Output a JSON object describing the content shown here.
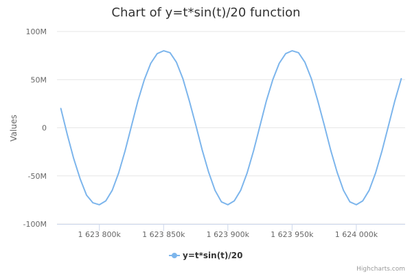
{
  "chart_data": {
    "type": "line",
    "title": "Chart of y=t*sin(t)/20 function",
    "xlabel": "",
    "ylabel": "Values",
    "xlim": [
      1623767,
      1624038
    ],
    "ylim": [
      -100000000,
      100000000
    ],
    "x_ticks": [
      {
        "value": 1623800,
        "label": "1 623 800k"
      },
      {
        "value": 1623850,
        "label": "1 623 850k"
      },
      {
        "value": 1623900,
        "label": "1 623 900k"
      },
      {
        "value": 1623950,
        "label": "1 623 950k"
      },
      {
        "value": 1624000,
        "label": "1 624 000k"
      }
    ],
    "y_ticks": [
      {
        "value": 100000000,
        "label": "100M"
      },
      {
        "value": 50000000,
        "label": "50M"
      },
      {
        "value": 0,
        "label": "0"
      },
      {
        "value": -50000000,
        "label": "-50M"
      },
      {
        "value": -100000000,
        "label": "-100M"
      }
    ],
    "grid": true,
    "legend_position": "bottom-center",
    "series": [
      {
        "name": "y=t*sin(t)/20",
        "color": "#7cb5ec",
        "x": [
          1623770,
          1623775,
          1623780,
          1623785,
          1623790,
          1623795,
          1623800,
          1623805,
          1623810,
          1623815,
          1623820,
          1623825,
          1623830,
          1623835,
          1623840,
          1623845,
          1623850,
          1623855,
          1623860,
          1623865,
          1623870,
          1623875,
          1623880,
          1623885,
          1623890,
          1623895,
          1623900,
          1623905,
          1623910,
          1623915,
          1623920,
          1623925,
          1623930,
          1623935,
          1623940,
          1623945,
          1623950,
          1623955,
          1623960,
          1623965,
          1623970,
          1623975,
          1623980,
          1623985,
          1623990,
          1623995,
          1624000,
          1624005,
          1624010,
          1624015,
          1624020,
          1624025,
          1624030,
          1624035
        ],
        "y": [
          20000000,
          -7000000,
          -32000000,
          -53000000,
          -70000000,
          -78000000,
          -80000000,
          -76000000,
          -65000000,
          -47000000,
          -24000000,
          2000000,
          28000000,
          50000000,
          67000000,
          77000000,
          80000000,
          78000000,
          68000000,
          51000000,
          28000000,
          3000000,
          -23000000,
          -46000000,
          -65000000,
          -77000000,
          -80000000,
          -76000000,
          -65000000,
          -47000000,
          -24000000,
          2000000,
          28000000,
          50000000,
          67000000,
          77000000,
          80000000,
          78000000,
          68000000,
          51000000,
          28000000,
          3000000,
          -23000000,
          -46000000,
          -65000000,
          -77000000,
          -80000000,
          -76000000,
          -65000000,
          -47000000,
          -24000000,
          2000000,
          28000000,
          51000000
        ]
      }
    ]
  },
  "credits": "Highcharts.com"
}
